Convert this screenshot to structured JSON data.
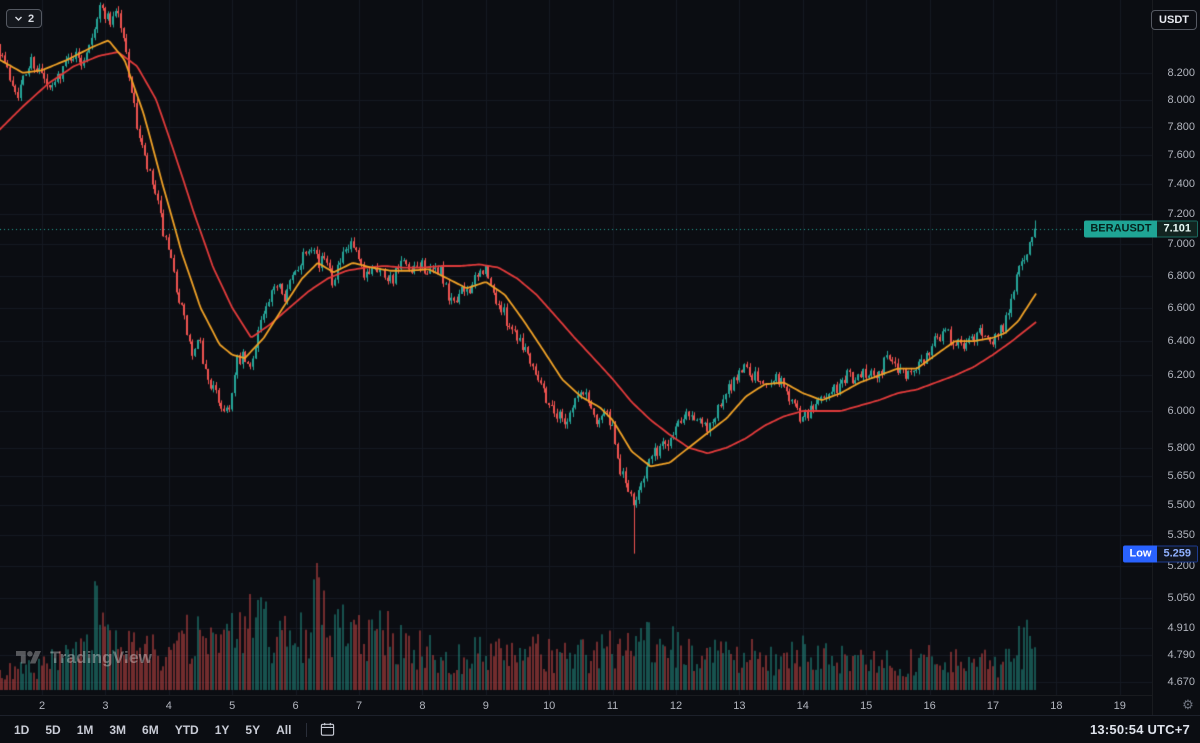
{
  "legend": {
    "collapsed_count": "2"
  },
  "price_scale": {
    "currency_button": "USDT",
    "labels": [
      "8.200",
      "8.000",
      "7.800",
      "7.600",
      "7.400",
      "7.200",
      "7.000",
      "6.800",
      "6.600",
      "6.400",
      "6.200",
      "6.000",
      "5.800",
      "5.650",
      "5.500",
      "5.350",
      "5.200",
      "5.050",
      "4.910",
      "4.790",
      "4.670"
    ]
  },
  "time_scale": {
    "labels": [
      "2",
      "3",
      "4",
      "5",
      "6",
      "7",
      "8",
      "9",
      "10",
      "11",
      "12",
      "13",
      "14",
      "15",
      "16",
      "17",
      "18",
      "19"
    ]
  },
  "tags": {
    "symbol": "BERAUSDT",
    "last": "7.101",
    "low_label": "Low",
    "low": "5.259"
  },
  "watermark": {
    "brand": "TradingView"
  },
  "toolbar": {
    "ranges": [
      "1D",
      "5D",
      "1M",
      "3M",
      "6M",
      "YTD",
      "1Y",
      "5Y",
      "All"
    ],
    "clock": "13:50:54 UTC+7"
  },
  "colors": {
    "background": "#0b0d12",
    "grid": "#161a23",
    "up": "#26a69a",
    "down": "#ef5350",
    "ma_fast": "#f0a227",
    "ma_slow": "#e23b3b",
    "axis_text": "#b2b5be",
    "last_tag": "#1fa595",
    "low_tag": "#2962ff"
  },
  "chart_data": {
    "type": "candlestick",
    "symbol": "BERAUSDT",
    "price_scale_type": "log",
    "last_price": 7.101,
    "last_high_wick": 7.155,
    "session_low": 5.259,
    "ylim": [
      4.62,
      8.77
    ],
    "x_days_visible": [
      1.33,
      19.5
    ],
    "price_ticks": [
      8.2,
      8.0,
      7.8,
      7.6,
      7.4,
      7.2,
      7.0,
      6.8,
      6.6,
      6.4,
      6.2,
      6.0,
      5.8,
      5.65,
      5.5,
      5.35,
      5.2,
      5.05,
      4.91,
      4.79,
      4.67
    ],
    "day_ticks": [
      2,
      3,
      4,
      5,
      6,
      7,
      8,
      9,
      10,
      11,
      12,
      13,
      14,
      15,
      16,
      17,
      18,
      19
    ],
    "price_path": [
      [
        1.33,
        8.42
      ],
      [
        1.5,
        8.18
      ],
      [
        1.65,
        8.05
      ],
      [
        1.85,
        8.3
      ],
      [
        2.0,
        8.2
      ],
      [
        2.15,
        8.05
      ],
      [
        2.3,
        8.2
      ],
      [
        2.5,
        8.35
      ],
      [
        2.65,
        8.28
      ],
      [
        2.8,
        8.5
      ],
      [
        2.95,
        8.72
      ],
      [
        3.1,
        8.6
      ],
      [
        3.2,
        8.72
      ],
      [
        3.35,
        8.35
      ],
      [
        3.5,
        7.85
      ],
      [
        3.65,
        7.55
      ],
      [
        3.8,
        7.35
      ],
      [
        3.95,
        7.05
      ],
      [
        4.1,
        6.8
      ],
      [
        4.25,
        6.55
      ],
      [
        4.4,
        6.3
      ],
      [
        4.5,
        6.4
      ],
      [
        4.6,
        6.22
      ],
      [
        4.75,
        6.1
      ],
      [
        4.9,
        6.0
      ],
      [
        5.0,
        6.05
      ],
      [
        5.1,
        6.28
      ],
      [
        5.2,
        6.3
      ],
      [
        5.3,
        6.22
      ],
      [
        5.45,
        6.5
      ],
      [
        5.6,
        6.62
      ],
      [
        5.75,
        6.78
      ],
      [
        5.85,
        6.68
      ],
      [
        6.0,
        6.8
      ],
      [
        6.15,
        6.95
      ],
      [
        6.3,
        7.02
      ],
      [
        6.4,
        6.85
      ],
      [
        6.5,
        6.95
      ],
      [
        6.6,
        6.78
      ],
      [
        6.75,
        6.9
      ],
      [
        6.9,
        7.0
      ],
      [
        7.0,
        6.9
      ],
      [
        7.1,
        6.78
      ],
      [
        7.25,
        6.88
      ],
      [
        7.4,
        6.82
      ],
      [
        7.55,
        6.78
      ],
      [
        7.7,
        6.88
      ],
      [
        7.85,
        6.8
      ],
      [
        8.0,
        6.88
      ],
      [
        8.15,
        6.8
      ],
      [
        8.3,
        6.85
      ],
      [
        8.45,
        6.62
      ],
      [
        8.6,
        6.68
      ],
      [
        8.75,
        6.72
      ],
      [
        8.9,
        6.78
      ],
      [
        9.0,
        6.86
      ],
      [
        9.1,
        6.72
      ],
      [
        9.25,
        6.6
      ],
      [
        9.4,
        6.5
      ],
      [
        9.55,
        6.42
      ],
      [
        9.7,
        6.32
      ],
      [
        9.85,
        6.2
      ],
      [
        10.0,
        6.05
      ],
      [
        10.15,
        5.98
      ],
      [
        10.3,
        5.95
      ],
      [
        10.45,
        6.08
      ],
      [
        10.6,
        6.1
      ],
      [
        10.75,
        5.95
      ],
      [
        10.9,
        6.0
      ],
      [
        11.0,
        5.92
      ],
      [
        11.1,
        5.72
      ],
      [
        11.25,
        5.6
      ],
      [
        11.35,
        5.48
      ],
      [
        11.45,
        5.62
      ],
      [
        11.6,
        5.72
      ],
      [
        11.75,
        5.8
      ],
      [
        11.9,
        5.84
      ],
      [
        12.05,
        5.94
      ],
      [
        12.2,
        6.02
      ],
      [
        12.35,
        5.95
      ],
      [
        12.5,
        5.9
      ],
      [
        12.65,
        5.98
      ],
      [
        12.8,
        6.08
      ],
      [
        12.95,
        6.18
      ],
      [
        13.1,
        6.26
      ],
      [
        13.25,
        6.2
      ],
      [
        13.4,
        6.14
      ],
      [
        13.55,
        6.2
      ],
      [
        13.7,
        6.16
      ],
      [
        13.85,
        6.05
      ],
      [
        14.0,
        5.96
      ],
      [
        14.15,
        6.0
      ],
      [
        14.3,
        6.08
      ],
      [
        14.45,
        6.1
      ],
      [
        14.6,
        6.14
      ],
      [
        14.75,
        6.2
      ],
      [
        14.9,
        6.18
      ],
      [
        15.05,
        6.24
      ],
      [
        15.2,
        6.2
      ],
      [
        15.35,
        6.3
      ],
      [
        15.5,
        6.26
      ],
      [
        15.65,
        6.2
      ],
      [
        15.8,
        6.26
      ],
      [
        15.95,
        6.3
      ],
      [
        16.1,
        6.42
      ],
      [
        16.25,
        6.46
      ],
      [
        16.4,
        6.4
      ],
      [
        16.55,
        6.36
      ],
      [
        16.7,
        6.42
      ],
      [
        16.85,
        6.46
      ],
      [
        17.0,
        6.4
      ],
      [
        17.1,
        6.44
      ],
      [
        17.2,
        6.5
      ],
      [
        17.3,
        6.62
      ],
      [
        17.4,
        6.8
      ],
      [
        17.5,
        6.9
      ],
      [
        17.6,
        7.0
      ],
      [
        17.7,
        7.1
      ]
    ],
    "ma_fast": [
      [
        1.33,
        8.3
      ],
      [
        1.7,
        8.2
      ],
      [
        2.0,
        8.22
      ],
      [
        2.4,
        8.3
      ],
      [
        2.8,
        8.4
      ],
      [
        3.05,
        8.45
      ],
      [
        3.3,
        8.3
      ],
      [
        3.6,
        7.9
      ],
      [
        3.9,
        7.4
      ],
      [
        4.2,
        6.95
      ],
      [
        4.5,
        6.6
      ],
      [
        4.8,
        6.38
      ],
      [
        5.0,
        6.32
      ],
      [
        5.2,
        6.3
      ],
      [
        5.5,
        6.42
      ],
      [
        5.8,
        6.6
      ],
      [
        6.1,
        6.78
      ],
      [
        6.35,
        6.88
      ],
      [
        6.6,
        6.82
      ],
      [
        6.9,
        6.88
      ],
      [
        7.2,
        6.85
      ],
      [
        7.5,
        6.83
      ],
      [
        7.8,
        6.83
      ],
      [
        8.1,
        6.84
      ],
      [
        8.4,
        6.78
      ],
      [
        8.7,
        6.72
      ],
      [
        9.0,
        6.76
      ],
      [
        9.3,
        6.68
      ],
      [
        9.6,
        6.52
      ],
      [
        9.9,
        6.35
      ],
      [
        10.2,
        6.18
      ],
      [
        10.5,
        6.08
      ],
      [
        10.8,
        6.02
      ],
      [
        11.0,
        5.95
      ],
      [
        11.3,
        5.78
      ],
      [
        11.6,
        5.7
      ],
      [
        11.9,
        5.72
      ],
      [
        12.2,
        5.8
      ],
      [
        12.5,
        5.88
      ],
      [
        12.8,
        5.96
      ],
      [
        13.1,
        6.08
      ],
      [
        13.4,
        6.15
      ],
      [
        13.7,
        6.16
      ],
      [
        14.0,
        6.1
      ],
      [
        14.3,
        6.06
      ],
      [
        14.6,
        6.1
      ],
      [
        14.9,
        6.16
      ],
      [
        15.2,
        6.2
      ],
      [
        15.5,
        6.24
      ],
      [
        15.8,
        6.24
      ],
      [
        16.1,
        6.32
      ],
      [
        16.4,
        6.4
      ],
      [
        16.7,
        6.4
      ],
      [
        17.0,
        6.42
      ],
      [
        17.2,
        6.45
      ],
      [
        17.4,
        6.52
      ],
      [
        17.7,
        6.7
      ]
    ],
    "ma_slow": [
      [
        1.33,
        7.78
      ],
      [
        1.7,
        7.95
      ],
      [
        2.1,
        8.12
      ],
      [
        2.5,
        8.25
      ],
      [
        2.9,
        8.33
      ],
      [
        3.2,
        8.36
      ],
      [
        3.5,
        8.25
      ],
      [
        3.8,
        8.0
      ],
      [
        4.1,
        7.6
      ],
      [
        4.4,
        7.2
      ],
      [
        4.7,
        6.85
      ],
      [
        5.0,
        6.6
      ],
      [
        5.3,
        6.42
      ],
      [
        5.6,
        6.5
      ],
      [
        5.9,
        6.6
      ],
      [
        6.2,
        6.7
      ],
      [
        6.5,
        6.78
      ],
      [
        6.8,
        6.83
      ],
      [
        7.1,
        6.85
      ],
      [
        7.4,
        6.86
      ],
      [
        7.7,
        6.85
      ],
      [
        8.0,
        6.85
      ],
      [
        8.3,
        6.86
      ],
      [
        8.6,
        6.86
      ],
      [
        8.9,
        6.87
      ],
      [
        9.2,
        6.85
      ],
      [
        9.5,
        6.78
      ],
      [
        9.8,
        6.68
      ],
      [
        10.1,
        6.55
      ],
      [
        10.4,
        6.42
      ],
      [
        10.7,
        6.3
      ],
      [
        11.0,
        6.18
      ],
      [
        11.3,
        6.05
      ],
      [
        11.6,
        5.95
      ],
      [
        11.9,
        5.87
      ],
      [
        12.2,
        5.8
      ],
      [
        12.5,
        5.77
      ],
      [
        12.8,
        5.8
      ],
      [
        13.1,
        5.85
      ],
      [
        13.4,
        5.92
      ],
      [
        13.7,
        5.97
      ],
      [
        14.0,
        6.0
      ],
      [
        14.3,
        6.0
      ],
      [
        14.6,
        6.0
      ],
      [
        14.9,
        6.03
      ],
      [
        15.2,
        6.06
      ],
      [
        15.5,
        6.1
      ],
      [
        15.8,
        6.12
      ],
      [
        16.1,
        6.16
      ],
      [
        16.4,
        6.2
      ],
      [
        16.7,
        6.25
      ],
      [
        17.0,
        6.32
      ],
      [
        17.3,
        6.4
      ],
      [
        17.7,
        6.52
      ]
    ],
    "volume_profile": [
      [
        1.35,
        0.18
      ],
      [
        1.8,
        0.22
      ],
      [
        2.2,
        0.3
      ],
      [
        2.6,
        0.35
      ],
      [
        2.85,
        1.0
      ],
      [
        3.0,
        0.5
      ],
      [
        3.2,
        0.45
      ],
      [
        3.6,
        0.4
      ],
      [
        4.0,
        0.5
      ],
      [
        4.4,
        0.55
      ],
      [
        4.8,
        0.5
      ],
      [
        5.1,
        0.6
      ],
      [
        5.45,
        0.8
      ],
      [
        5.7,
        0.5
      ],
      [
        6.1,
        0.6
      ],
      [
        6.35,
        0.95
      ],
      [
        6.6,
        0.7
      ],
      [
        7.0,
        0.55
      ],
      [
        7.4,
        0.6
      ],
      [
        7.8,
        0.45
      ],
      [
        8.2,
        0.4
      ],
      [
        8.6,
        0.35
      ],
      [
        9.0,
        0.45
      ],
      [
        9.4,
        0.35
      ],
      [
        9.8,
        0.4
      ],
      [
        10.2,
        0.35
      ],
      [
        10.6,
        0.4
      ],
      [
        11.0,
        0.45
      ],
      [
        11.3,
        0.6
      ],
      [
        11.6,
        0.5
      ],
      [
        12.0,
        0.45
      ],
      [
        12.4,
        0.35
      ],
      [
        12.8,
        0.4
      ],
      [
        13.2,
        0.4
      ],
      [
        13.6,
        0.3
      ],
      [
        14.0,
        0.4
      ],
      [
        14.4,
        0.35
      ],
      [
        14.8,
        0.3
      ],
      [
        15.2,
        0.3
      ],
      [
        15.6,
        0.28
      ],
      [
        16.0,
        0.32
      ],
      [
        16.4,
        0.3
      ],
      [
        16.8,
        0.28
      ],
      [
        17.1,
        0.3
      ],
      [
        17.35,
        0.45
      ],
      [
        17.55,
        0.5
      ],
      [
        17.7,
        0.5
      ]
    ]
  }
}
